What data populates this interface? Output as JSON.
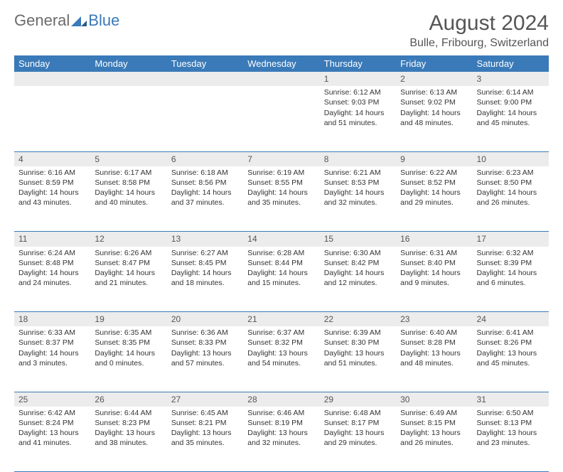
{
  "brand": {
    "part1": "General",
    "part2": "Blue"
  },
  "title": "August 2024",
  "location": "Bulle, Fribourg, Switzerland",
  "colors": {
    "header_bg": "#3a7ab8",
    "header_text": "#ffffff",
    "daynum_bg": "#ececec",
    "border": "#3a7ab8",
    "body_text": "#333333",
    "title_text": "#555555"
  },
  "weekdays": [
    "Sunday",
    "Monday",
    "Tuesday",
    "Wednesday",
    "Thursday",
    "Friday",
    "Saturday"
  ],
  "weeks": [
    {
      "nums": [
        "",
        "",
        "",
        "",
        "1",
        "2",
        "3"
      ],
      "cells": [
        null,
        null,
        null,
        null,
        {
          "sunrise": "Sunrise: 6:12 AM",
          "sunset": "Sunset: 9:03 PM",
          "day1": "Daylight: 14 hours",
          "day2": "and 51 minutes."
        },
        {
          "sunrise": "Sunrise: 6:13 AM",
          "sunset": "Sunset: 9:02 PM",
          "day1": "Daylight: 14 hours",
          "day2": "and 48 minutes."
        },
        {
          "sunrise": "Sunrise: 6:14 AM",
          "sunset": "Sunset: 9:00 PM",
          "day1": "Daylight: 14 hours",
          "day2": "and 45 minutes."
        }
      ]
    },
    {
      "nums": [
        "4",
        "5",
        "6",
        "7",
        "8",
        "9",
        "10"
      ],
      "cells": [
        {
          "sunrise": "Sunrise: 6:16 AM",
          "sunset": "Sunset: 8:59 PM",
          "day1": "Daylight: 14 hours",
          "day2": "and 43 minutes."
        },
        {
          "sunrise": "Sunrise: 6:17 AM",
          "sunset": "Sunset: 8:58 PM",
          "day1": "Daylight: 14 hours",
          "day2": "and 40 minutes."
        },
        {
          "sunrise": "Sunrise: 6:18 AM",
          "sunset": "Sunset: 8:56 PM",
          "day1": "Daylight: 14 hours",
          "day2": "and 37 minutes."
        },
        {
          "sunrise": "Sunrise: 6:19 AM",
          "sunset": "Sunset: 8:55 PM",
          "day1": "Daylight: 14 hours",
          "day2": "and 35 minutes."
        },
        {
          "sunrise": "Sunrise: 6:21 AM",
          "sunset": "Sunset: 8:53 PM",
          "day1": "Daylight: 14 hours",
          "day2": "and 32 minutes."
        },
        {
          "sunrise": "Sunrise: 6:22 AM",
          "sunset": "Sunset: 8:52 PM",
          "day1": "Daylight: 14 hours",
          "day2": "and 29 minutes."
        },
        {
          "sunrise": "Sunrise: 6:23 AM",
          "sunset": "Sunset: 8:50 PM",
          "day1": "Daylight: 14 hours",
          "day2": "and 26 minutes."
        }
      ]
    },
    {
      "nums": [
        "11",
        "12",
        "13",
        "14",
        "15",
        "16",
        "17"
      ],
      "cells": [
        {
          "sunrise": "Sunrise: 6:24 AM",
          "sunset": "Sunset: 8:48 PM",
          "day1": "Daylight: 14 hours",
          "day2": "and 24 minutes."
        },
        {
          "sunrise": "Sunrise: 6:26 AM",
          "sunset": "Sunset: 8:47 PM",
          "day1": "Daylight: 14 hours",
          "day2": "and 21 minutes."
        },
        {
          "sunrise": "Sunrise: 6:27 AM",
          "sunset": "Sunset: 8:45 PM",
          "day1": "Daylight: 14 hours",
          "day2": "and 18 minutes."
        },
        {
          "sunrise": "Sunrise: 6:28 AM",
          "sunset": "Sunset: 8:44 PM",
          "day1": "Daylight: 14 hours",
          "day2": "and 15 minutes."
        },
        {
          "sunrise": "Sunrise: 6:30 AM",
          "sunset": "Sunset: 8:42 PM",
          "day1": "Daylight: 14 hours",
          "day2": "and 12 minutes."
        },
        {
          "sunrise": "Sunrise: 6:31 AM",
          "sunset": "Sunset: 8:40 PM",
          "day1": "Daylight: 14 hours",
          "day2": "and 9 minutes."
        },
        {
          "sunrise": "Sunrise: 6:32 AM",
          "sunset": "Sunset: 8:39 PM",
          "day1": "Daylight: 14 hours",
          "day2": "and 6 minutes."
        }
      ]
    },
    {
      "nums": [
        "18",
        "19",
        "20",
        "21",
        "22",
        "23",
        "24"
      ],
      "cells": [
        {
          "sunrise": "Sunrise: 6:33 AM",
          "sunset": "Sunset: 8:37 PM",
          "day1": "Daylight: 14 hours",
          "day2": "and 3 minutes."
        },
        {
          "sunrise": "Sunrise: 6:35 AM",
          "sunset": "Sunset: 8:35 PM",
          "day1": "Daylight: 14 hours",
          "day2": "and 0 minutes."
        },
        {
          "sunrise": "Sunrise: 6:36 AM",
          "sunset": "Sunset: 8:33 PM",
          "day1": "Daylight: 13 hours",
          "day2": "and 57 minutes."
        },
        {
          "sunrise": "Sunrise: 6:37 AM",
          "sunset": "Sunset: 8:32 PM",
          "day1": "Daylight: 13 hours",
          "day2": "and 54 minutes."
        },
        {
          "sunrise": "Sunrise: 6:39 AM",
          "sunset": "Sunset: 8:30 PM",
          "day1": "Daylight: 13 hours",
          "day2": "and 51 minutes."
        },
        {
          "sunrise": "Sunrise: 6:40 AM",
          "sunset": "Sunset: 8:28 PM",
          "day1": "Daylight: 13 hours",
          "day2": "and 48 minutes."
        },
        {
          "sunrise": "Sunrise: 6:41 AM",
          "sunset": "Sunset: 8:26 PM",
          "day1": "Daylight: 13 hours",
          "day2": "and 45 minutes."
        }
      ]
    },
    {
      "nums": [
        "25",
        "26",
        "27",
        "28",
        "29",
        "30",
        "31"
      ],
      "cells": [
        {
          "sunrise": "Sunrise: 6:42 AM",
          "sunset": "Sunset: 8:24 PM",
          "day1": "Daylight: 13 hours",
          "day2": "and 41 minutes."
        },
        {
          "sunrise": "Sunrise: 6:44 AM",
          "sunset": "Sunset: 8:23 PM",
          "day1": "Daylight: 13 hours",
          "day2": "and 38 minutes."
        },
        {
          "sunrise": "Sunrise: 6:45 AM",
          "sunset": "Sunset: 8:21 PM",
          "day1": "Daylight: 13 hours",
          "day2": "and 35 minutes."
        },
        {
          "sunrise": "Sunrise: 6:46 AM",
          "sunset": "Sunset: 8:19 PM",
          "day1": "Daylight: 13 hours",
          "day2": "and 32 minutes."
        },
        {
          "sunrise": "Sunrise: 6:48 AM",
          "sunset": "Sunset: 8:17 PM",
          "day1": "Daylight: 13 hours",
          "day2": "and 29 minutes."
        },
        {
          "sunrise": "Sunrise: 6:49 AM",
          "sunset": "Sunset: 8:15 PM",
          "day1": "Daylight: 13 hours",
          "day2": "and 26 minutes."
        },
        {
          "sunrise": "Sunrise: 6:50 AM",
          "sunset": "Sunset: 8:13 PM",
          "day1": "Daylight: 13 hours",
          "day2": "and 23 minutes."
        }
      ]
    }
  ]
}
